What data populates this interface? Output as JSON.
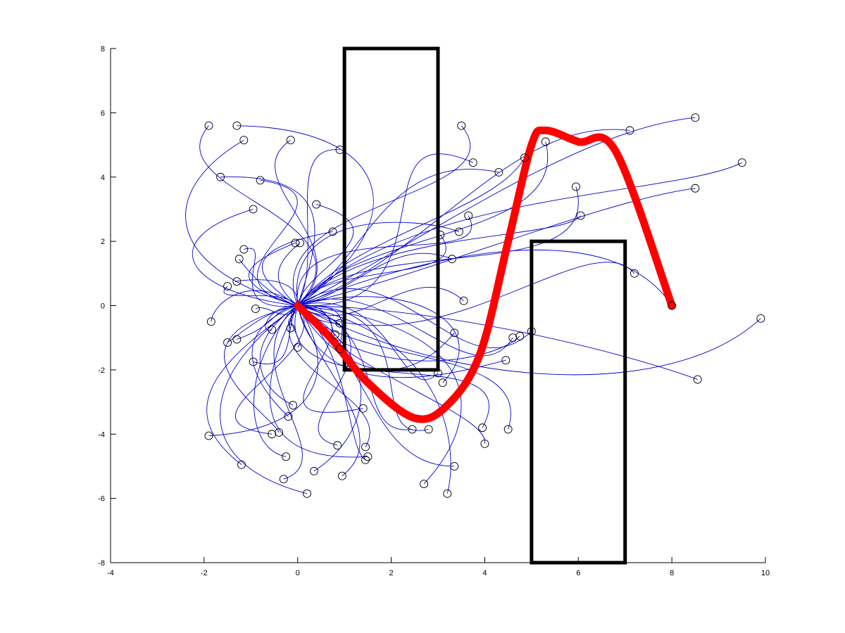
{
  "chart_data": {
    "type": "line",
    "title": "",
    "xlabel": "",
    "ylabel": "",
    "xlim": [
      -4,
      10
    ],
    "ylim": [
      -8,
      8
    ],
    "grid": false,
    "x_ticks": [
      -4,
      -2,
      0,
      2,
      4,
      6,
      8,
      10
    ],
    "y_ticks": [
      -8,
      -6,
      -4,
      -2,
      0,
      2,
      4,
      6,
      8
    ],
    "colors": {
      "trajectories": "#0000cc",
      "optimal_path": "#ff0000",
      "obstacles": "#000000",
      "markers": "#000000"
    },
    "obstacles": [
      {
        "x_range": [
          1,
          3
        ],
        "y_range": [
          -2,
          8
        ]
      },
      {
        "x_range": [
          5,
          7
        ],
        "y_range": [
          -8,
          2
        ]
      }
    ],
    "origin": [
      0,
      0
    ],
    "optimal_path": [
      [
        0,
        0
      ],
      [
        0.7,
        -1.0
      ],
      [
        1.5,
        -2.4
      ],
      [
        2.5,
        -3.5
      ],
      [
        3.2,
        -3.1
      ],
      [
        3.9,
        -1.5
      ],
      [
        4.5,
        2.0
      ],
      [
        5.0,
        5.0
      ],
      [
        5.3,
        5.45
      ],
      [
        6.0,
        5.1
      ],
      [
        6.8,
        4.8
      ],
      [
        8.0,
        0.0
      ]
    ],
    "end_points": [
      [
        -1.9,
        5.6
      ],
      [
        -1.3,
        5.6
      ],
      [
        -1.15,
        5.15
      ],
      [
        -0.15,
        5.15
      ],
      [
        -1.65,
        4.0
      ],
      [
        -0.8,
        3.9
      ],
      [
        -0.95,
        3.0
      ],
      [
        0.4,
        3.15
      ],
      [
        0.75,
        2.3
      ],
      [
        -0.05,
        1.95
      ],
      [
        0.05,
        1.95
      ],
      [
        -1.15,
        1.75
      ],
      [
        -1.25,
        1.45
      ],
      [
        -1.5,
        0.6
      ],
      [
        -1.3,
        0.75
      ],
      [
        -0.9,
        -0.1
      ],
      [
        -1.85,
        -0.5
      ],
      [
        -0.55,
        -0.75
      ],
      [
        -0.15,
        -0.7
      ],
      [
        -1.5,
        -1.15
      ],
      [
        -1.3,
        -1.05
      ],
      [
        -0.95,
        -1.75
      ],
      [
        0.0,
        -1.3
      ],
      [
        -0.1,
        -3.1
      ],
      [
        -0.2,
        -3.45
      ],
      [
        -0.4,
        -3.95
      ],
      [
        -0.55,
        -4.0
      ],
      [
        -1.9,
        -4.05
      ],
      [
        -1.2,
        -4.95
      ],
      [
        -0.25,
        -4.7
      ],
      [
        -0.3,
        -5.4
      ],
      [
        0.35,
        -5.15
      ],
      [
        0.2,
        -5.85
      ],
      [
        0.8,
        -0.9
      ],
      [
        0.9,
        -0.55
      ],
      [
        0.9,
        -1.35
      ],
      [
        0.85,
        -4.35
      ],
      [
        0.95,
        -5.3
      ],
      [
        1.4,
        -3.2
      ],
      [
        1.45,
        -4.4
      ],
      [
        1.45,
        -4.8
      ],
      [
        1.5,
        -4.7
      ],
      [
        2.45,
        -3.85
      ],
      [
        2.8,
        -3.85
      ],
      [
        2.7,
        -5.55
      ],
      [
        3.2,
        -5.85
      ],
      [
        3.35,
        -5.0
      ],
      [
        3.0,
        -2.1
      ],
      [
        3.1,
        -2.4
      ],
      [
        3.05,
        2.2
      ],
      [
        3.3,
        1.45
      ],
      [
        3.45,
        2.3
      ],
      [
        3.5,
        5.6
      ],
      [
        3.55,
        0.15
      ],
      [
        3.65,
        2.8
      ],
      [
        3.75,
        4.45
      ],
      [
        3.35,
        -0.85
      ],
      [
        4.3,
        4.15
      ],
      [
        4.45,
        -1.7
      ],
      [
        4.6,
        -1.0
      ],
      [
        4.75,
        -0.95
      ],
      [
        5.0,
        -0.8
      ],
      [
        4.5,
        -3.85
      ],
      [
        3.95,
        -3.8
      ],
      [
        4.0,
        -4.3
      ],
      [
        4.85,
        4.6
      ],
      [
        5.3,
        5.1
      ],
      [
        5.95,
        3.7
      ],
      [
        6.05,
        2.8
      ],
      [
        7.1,
        5.45
      ],
      [
        8.5,
        5.85
      ],
      [
        9.5,
        4.45
      ],
      [
        8.5,
        3.65
      ],
      [
        7.2,
        1.0
      ],
      [
        8.55,
        -2.3
      ],
      [
        9.9,
        -0.4
      ],
      [
        8.0,
        0.0
      ],
      [
        0.9,
        4.85
      ]
    ]
  }
}
